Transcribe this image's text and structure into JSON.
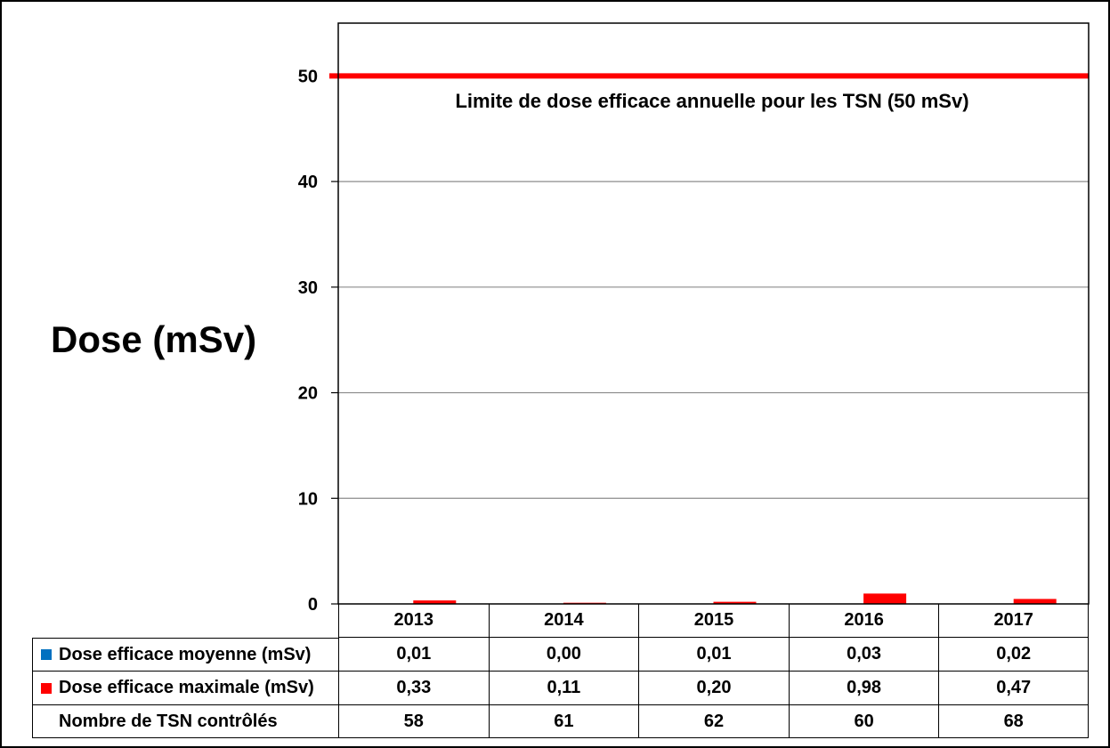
{
  "chart_data": {
    "type": "bar",
    "ylabel": "Dose (mSv)",
    "ylim": [
      0,
      55
    ],
    "yticks": [
      "0",
      "10",
      "20",
      "30",
      "40",
      "50"
    ],
    "grid": true,
    "categories": [
      "2013",
      "2014",
      "2015",
      "2016",
      "2017"
    ],
    "series": [
      {
        "name": "Dose efficace moyenne (mSv)",
        "color": "#0070C0",
        "values": [
          0.01,
          0.0,
          0.01,
          0.03,
          0.02
        ],
        "labels": [
          "0,01",
          "0,00",
          "0,01",
          "0,03",
          "0,02"
        ]
      },
      {
        "name": "Dose efficace maximale (mSv)",
        "color": "#FF0000",
        "values": [
          0.33,
          0.11,
          0.2,
          0.98,
          0.47
        ],
        "labels": [
          "0,33",
          "0,11",
          "0,20",
          "0,98",
          "0,47"
        ]
      }
    ],
    "table_extra_row": {
      "name": "Nombre de TSN contrôlés",
      "values": [
        "58",
        "61",
        "62",
        "60",
        "68"
      ]
    },
    "reference_line": {
      "value": 50,
      "color": "#FF0000",
      "label": "Limite de dose efficace annuelle pour les TSN (50 mSv)"
    }
  }
}
